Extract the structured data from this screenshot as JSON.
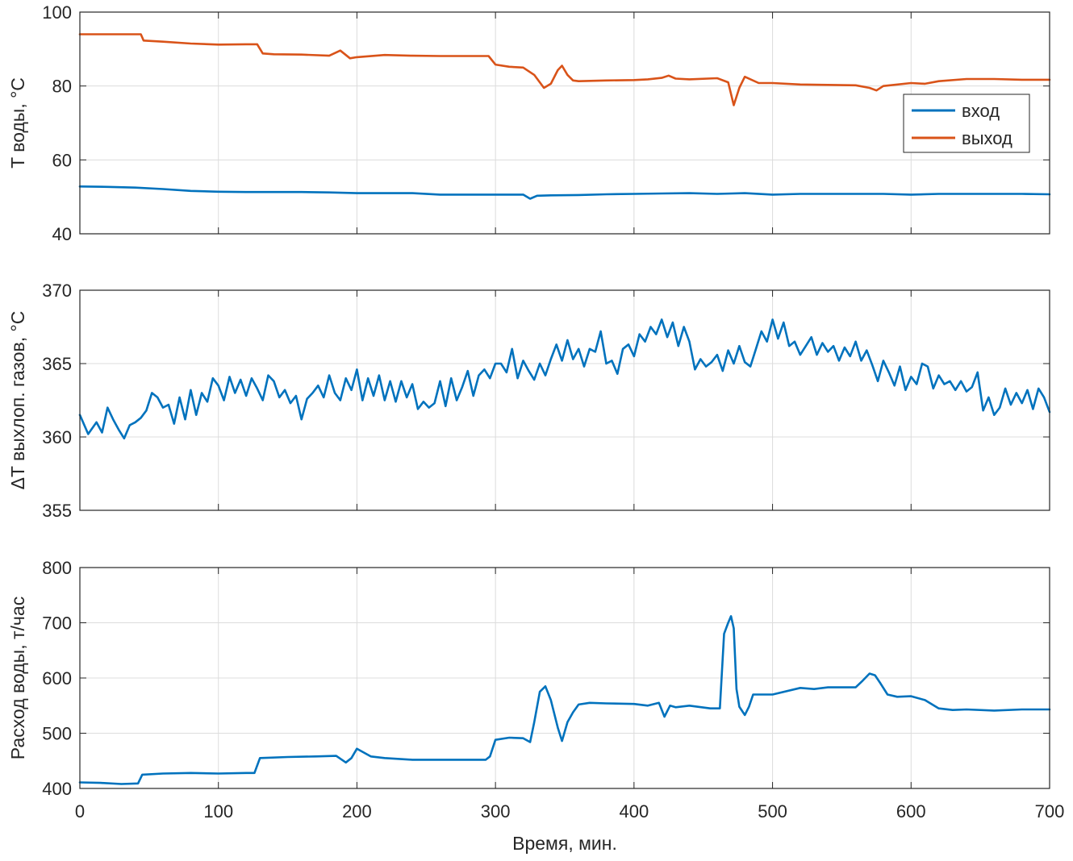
{
  "chart_data": [
    {
      "type": "line",
      "title": "",
      "xlabel": "",
      "ylabel": "T воды, °C",
      "xlim": [
        0,
        700
      ],
      "ylim": [
        40,
        100
      ],
      "xticks": [
        0,
        100,
        200,
        300,
        400,
        500,
        600,
        700
      ],
      "yticks": [
        40,
        60,
        80,
        100
      ],
      "show_x_tick_labels": false,
      "grid": true,
      "legend": "right",
      "series": [
        {
          "name": "вход",
          "color": "#0072BD",
          "x": [
            0,
            20,
            40,
            60,
            80,
            100,
            120,
            140,
            160,
            180,
            200,
            220,
            240,
            260,
            280,
            300,
            320,
            325,
            330,
            340,
            360,
            380,
            400,
            420,
            440,
            460,
            480,
            500,
            520,
            540,
            560,
            580,
            600,
            620,
            640,
            660,
            680,
            700
          ],
          "y": [
            52.8,
            52.7,
            52.5,
            52.1,
            51.6,
            51.4,
            51.3,
            51.3,
            51.3,
            51.2,
            51.0,
            51.0,
            51.0,
            50.6,
            50.6,
            50.6,
            50.6,
            49.5,
            50.3,
            50.4,
            50.5,
            50.7,
            50.8,
            50.9,
            51.0,
            50.8,
            51.0,
            50.6,
            50.8,
            50.8,
            50.8,
            50.8,
            50.6,
            50.8,
            50.8,
            50.8,
            50.8,
            50.7
          ]
        },
        {
          "name": "выход",
          "color": "#D95319",
          "x": [
            0,
            20,
            44,
            46,
            60,
            80,
            100,
            120,
            128,
            132,
            140,
            160,
            180,
            188,
            195,
            200,
            220,
            240,
            260,
            280,
            295,
            300,
            310,
            320,
            328,
            335,
            340,
            345,
            348,
            352,
            356,
            360,
            380,
            400,
            410,
            420,
            425,
            430,
            440,
            460,
            468,
            472,
            476,
            480,
            490,
            500,
            520,
            540,
            560,
            570,
            575,
            580,
            600,
            610,
            620,
            640,
            660,
            680,
            700
          ],
          "y": [
            94.0,
            94.0,
            94.0,
            92.3,
            92.0,
            91.5,
            91.2,
            91.3,
            91.3,
            88.8,
            88.6,
            88.5,
            88.2,
            89.6,
            87.5,
            87.8,
            88.4,
            88.2,
            88.1,
            88.1,
            88.1,
            85.8,
            85.2,
            85.0,
            83.0,
            79.5,
            80.6,
            84.3,
            85.5,
            83.0,
            81.5,
            81.3,
            81.5,
            81.6,
            81.8,
            82.2,
            82.8,
            82.0,
            81.8,
            82.1,
            81.0,
            74.8,
            79.5,
            82.5,
            80.8,
            80.8,
            80.4,
            80.3,
            80.2,
            79.5,
            78.8,
            80.0,
            80.8,
            80.6,
            81.3,
            81.9,
            81.9,
            81.7,
            81.7
          ]
        }
      ]
    },
    {
      "type": "line",
      "title": "",
      "xlabel": "",
      "ylabel": "ΔT выхлоп. газов, °C",
      "xlim": [
        0,
        700
      ],
      "ylim": [
        355,
        370
      ],
      "xticks": [
        0,
        100,
        200,
        300,
        400,
        500,
        600,
        700
      ],
      "yticks": [
        355,
        360,
        365,
        370
      ],
      "show_x_tick_labels": false,
      "grid": true,
      "series": [
        {
          "name": "",
          "color": "#0072BD",
          "x": [
            0,
            6,
            12,
            16,
            20,
            24,
            28,
            32,
            36,
            40,
            44,
            48,
            52,
            56,
            60,
            64,
            68,
            72,
            76,
            80,
            84,
            88,
            92,
            96,
            100,
            104,
            108,
            112,
            116,
            120,
            124,
            128,
            132,
            136,
            140,
            144,
            148,
            152,
            156,
            160,
            164,
            168,
            172,
            176,
            180,
            184,
            188,
            192,
            196,
            200,
            204,
            208,
            212,
            216,
            220,
            224,
            228,
            232,
            236,
            240,
            244,
            248,
            252,
            256,
            260,
            264,
            268,
            272,
            276,
            280,
            284,
            288,
            292,
            296,
            300,
            304,
            308,
            312,
            316,
            320,
            324,
            328,
            332,
            336,
            340,
            344,
            348,
            352,
            356,
            360,
            364,
            368,
            372,
            376,
            380,
            384,
            388,
            392,
            396,
            400,
            404,
            408,
            412,
            416,
            420,
            424,
            428,
            432,
            436,
            440,
            444,
            448,
            452,
            456,
            460,
            464,
            468,
            472,
            476,
            480,
            484,
            488,
            492,
            496,
            500,
            504,
            508,
            512,
            516,
            520,
            524,
            528,
            532,
            536,
            540,
            544,
            548,
            552,
            556,
            560,
            564,
            568,
            572,
            576,
            580,
            584,
            588,
            592,
            596,
            600,
            604,
            608,
            612,
            616,
            620,
            624,
            628,
            632,
            636,
            640,
            644,
            648,
            652,
            656,
            660,
            664,
            668,
            672,
            676,
            680,
            684,
            688,
            692,
            696,
            700
          ],
          "y": [
            361.5,
            360.2,
            361.0,
            360.3,
            362.0,
            361.2,
            360.5,
            359.9,
            360.8,
            361.0,
            361.3,
            361.8,
            363.0,
            362.7,
            362.0,
            362.2,
            360.9,
            362.7,
            361.2,
            363.2,
            361.5,
            363.0,
            362.4,
            364.0,
            363.5,
            362.5,
            364.1,
            363.0,
            363.9,
            362.8,
            364.0,
            363.3,
            362.5,
            364.2,
            363.8,
            362.7,
            363.2,
            362.3,
            362.8,
            361.2,
            362.6,
            363.0,
            363.5,
            362.7,
            364.2,
            363.0,
            362.5,
            364.0,
            363.2,
            364.6,
            362.5,
            364.0,
            362.8,
            364.2,
            362.5,
            363.8,
            362.4,
            363.8,
            362.7,
            363.6,
            361.9,
            362.4,
            362.0,
            362.3,
            363.8,
            362.1,
            364.0,
            362.5,
            363.4,
            364.5,
            362.8,
            364.2,
            364.6,
            364.0,
            365.0,
            365.0,
            364.4,
            366.0,
            364.0,
            365.2,
            364.5,
            363.9,
            365.0,
            364.2,
            365.3,
            366.3,
            365.2,
            366.6,
            365.3,
            366.0,
            364.8,
            366.0,
            365.8,
            367.2,
            365.0,
            365.2,
            364.3,
            366.0,
            366.3,
            365.5,
            367.0,
            366.5,
            367.5,
            367.0,
            368.0,
            366.8,
            367.8,
            366.2,
            367.5,
            366.5,
            364.6,
            365.3,
            364.8,
            365.1,
            365.6,
            364.5,
            365.9,
            365.0,
            366.2,
            365.1,
            364.8,
            366.0,
            367.2,
            366.5,
            368.0,
            366.7,
            367.8,
            366.2,
            366.5,
            365.6,
            366.2,
            366.8,
            365.6,
            366.4,
            365.8,
            366.2,
            365.2,
            366.1,
            365.5,
            366.5,
            365.2,
            365.9,
            364.9,
            363.8,
            365.2,
            364.4,
            363.5,
            364.8,
            363.2,
            364.1,
            363.6,
            365.0,
            364.8,
            363.3,
            364.2,
            363.6,
            363.8,
            363.2,
            363.8,
            363.1,
            363.4,
            364.4,
            361.8,
            362.7,
            361.5,
            362.0,
            363.3,
            362.2,
            363.0,
            362.3,
            363.2,
            361.9,
            363.3,
            362.7,
            361.7
          ]
        }
      ]
    },
    {
      "type": "line",
      "title": "",
      "xlabel": "Время, мин.",
      "ylabel": "Расход воды, т/час",
      "xlim": [
        0,
        700
      ],
      "ylim": [
        400,
        800
      ],
      "xticks": [
        0,
        100,
        200,
        300,
        400,
        500,
        600,
        700
      ],
      "yticks": [
        400,
        500,
        600,
        700,
        800
      ],
      "show_x_tick_labels": true,
      "grid": true,
      "series": [
        {
          "name": "",
          "color": "#0072BD",
          "x": [
            0,
            15,
            30,
            42,
            45,
            60,
            80,
            100,
            120,
            126,
            130,
            150,
            170,
            185,
            192,
            196,
            200,
            210,
            220,
            240,
            260,
            280,
            293,
            296,
            300,
            310,
            320,
            325,
            328,
            332,
            336,
            340,
            345,
            348,
            352,
            356,
            360,
            368,
            380,
            400,
            410,
            418,
            422,
            426,
            430,
            440,
            455,
            462,
            465,
            468,
            470,
            472,
            474,
            476,
            480,
            483,
            486,
            490,
            500,
            520,
            530,
            540,
            560,
            565,
            570,
            574,
            578,
            583,
            590,
            600,
            610,
            620,
            630,
            640,
            660,
            680,
            700
          ],
          "y": [
            411,
            410,
            408,
            409,
            425,
            427,
            428,
            427,
            428,
            428,
            455,
            457,
            458,
            459,
            447,
            455,
            472,
            458,
            455,
            452,
            452,
            452,
            452,
            458,
            488,
            492,
            491,
            484,
            520,
            575,
            585,
            560,
            510,
            486,
            520,
            538,
            552,
            555,
            554,
            553,
            550,
            555,
            530,
            550,
            547,
            550,
            545,
            545,
            680,
            700,
            712,
            690,
            580,
            548,
            533,
            548,
            570,
            570,
            570,
            582,
            580,
            583,
            583,
            595,
            608,
            605,
            590,
            570,
            566,
            567,
            560,
            545,
            542,
            543,
            541,
            543,
            543
          ]
        }
      ]
    }
  ]
}
